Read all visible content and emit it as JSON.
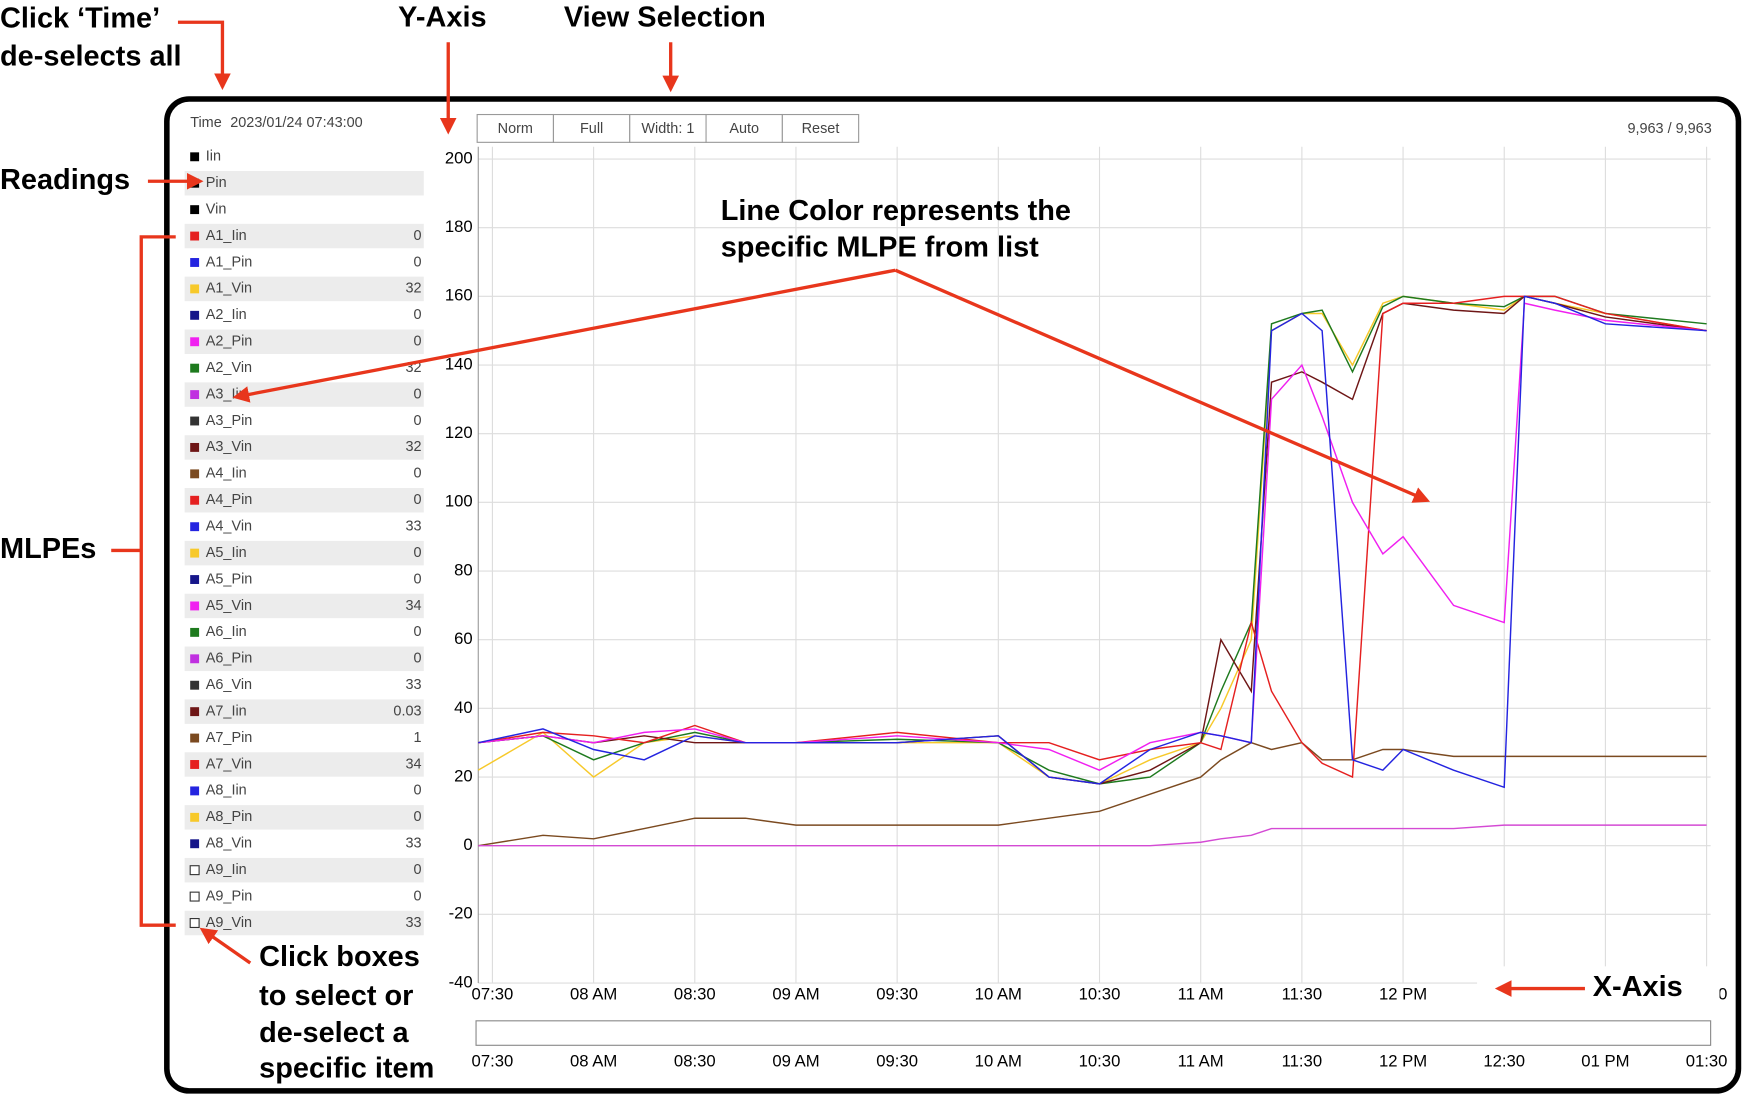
{
  "annotations": {
    "time_hint": [
      "Click ‘Time’",
      "de-selects all"
    ],
    "y_axis": "Y-Axis",
    "view_selection": "View Selection",
    "readings": "Readings",
    "mlpes": "MLPEs",
    "line_color": [
      "Line Color represents the",
      "specific MLPE from list"
    ],
    "click_boxes": [
      "Click boxes",
      "to select or",
      "de-select a",
      "specific item"
    ],
    "x_axis": "X-Axis"
  },
  "header": {
    "time_label": "Time",
    "timestamp": "2023/01/24 07:43:00",
    "counter": "9,963 / 9,963"
  },
  "toolbar": [
    "Norm",
    "Full",
    "Width: 1",
    "Auto",
    "Reset"
  ],
  "items": [
    {
      "name": "Iin",
      "color": "#000000"
    },
    {
      "name": "Pin",
      "color": "#000000"
    },
    {
      "name": "Vin",
      "color": "#000000"
    },
    {
      "name": "A1_Iin",
      "color": "#e52020",
      "value": 0
    },
    {
      "name": "A1_Pin",
      "color": "#2424e0",
      "value": 0
    },
    {
      "name": "A1_Vin",
      "color": "#f7c92a",
      "value": 32
    },
    {
      "name": "A2_Iin",
      "color": "#16168a",
      "value": 0
    },
    {
      "name": "A2_Pin",
      "color": "#f020f0",
      "value": 0
    },
    {
      "name": "A2_Vin",
      "color": "#1e7a1e",
      "value": 32
    },
    {
      "name": "A3_Iin",
      "color": "#c030e0",
      "value": 0
    },
    {
      "name": "A3_Pin",
      "color": "#333333",
      "value": 0
    },
    {
      "name": "A3_Vin",
      "color": "#6e1616",
      "value": 32
    },
    {
      "name": "A4_Iin",
      "color": "#7b4a20",
      "value": 0
    },
    {
      "name": "A4_Pin",
      "color": "#e52020",
      "value": 0
    },
    {
      "name": "A4_Vin",
      "color": "#2424e0",
      "value": 33
    },
    {
      "name": "A5_Iin",
      "color": "#f7c92a",
      "value": 0
    },
    {
      "name": "A5_Pin",
      "color": "#16168a",
      "value": 0
    },
    {
      "name": "A5_Vin",
      "color": "#f020f0",
      "value": 34
    },
    {
      "name": "A6_Iin",
      "color": "#1e7a1e",
      "value": 0
    },
    {
      "name": "A6_Pin",
      "color": "#c030e0",
      "value": 0
    },
    {
      "name": "A6_Vin",
      "color": "#333333",
      "value": 33
    },
    {
      "name": "A7_Iin",
      "color": "#6e1616",
      "value": 0.03
    },
    {
      "name": "A7_Pin",
      "color": "#7b4a20",
      "value": 1
    },
    {
      "name": "A7_Vin",
      "color": "#e52020",
      "value": 34
    },
    {
      "name": "A8_Iin",
      "color": "#2424e0",
      "value": 0
    },
    {
      "name": "A8_Pin",
      "color": "#f7c92a",
      "value": 0
    },
    {
      "name": "A8_Vin",
      "color": "#16168a",
      "value": 33
    },
    {
      "name": "A9_Iin",
      "checked": false,
      "value": 0
    },
    {
      "name": "A9_Pin",
      "checked": false,
      "value": 0
    },
    {
      "name": "A9_Vin",
      "checked": false,
      "value": 33
    }
  ],
  "chart_data": {
    "type": "line",
    "x": [
      7.43,
      7.75,
      8.0,
      8.25,
      8.5,
      8.75,
      9.0,
      9.5,
      10.0,
      10.25,
      10.5,
      10.75,
      11.0,
      11.1,
      11.25,
      11.35,
      11.5,
      11.6,
      11.75,
      11.9,
      12.0,
      12.25,
      12.5,
      12.6,
      12.75,
      13.0,
      13.5
    ],
    "series": [
      {
        "color": "#7b4a20",
        "values": [
          0,
          3,
          2,
          5,
          8,
          8,
          6,
          6,
          6,
          8,
          10,
          15,
          20,
          25,
          30,
          28,
          30,
          25,
          25,
          28,
          28,
          26,
          26,
          26,
          26,
          26,
          26
        ]
      },
      {
        "color": "#d44ad4",
        "values": [
          0,
          0,
          0,
          0,
          0,
          0,
          0,
          0,
          0,
          0,
          0,
          0,
          1,
          2,
          3,
          5,
          5,
          5,
          5,
          5,
          5,
          5,
          6,
          6,
          6,
          6,
          6
        ]
      },
      {
        "color": "#f7c92a",
        "values": [
          22,
          33,
          20,
          30,
          32,
          30,
          30,
          30,
          30,
          20,
          18,
          25,
          30,
          40,
          60,
          150,
          155,
          155,
          140,
          158,
          160,
          158,
          156,
          160,
          158,
          155,
          150
        ]
      },
      {
        "color": "#1e7a1e",
        "values": [
          30,
          32,
          25,
          30,
          33,
          30,
          30,
          31,
          30,
          22,
          18,
          20,
          30,
          45,
          65,
          152,
          155,
          156,
          138,
          157,
          160,
          158,
          157,
          160,
          160,
          155,
          152
        ]
      },
      {
        "color": "#6e1616",
        "values": [
          30,
          32,
          30,
          32,
          30,
          30,
          30,
          30,
          32,
          20,
          18,
          22,
          30,
          60,
          45,
          135,
          138,
          135,
          130,
          155,
          158,
          156,
          155,
          160,
          158,
          154,
          150
        ]
      },
      {
        "color": "#e52020",
        "values": [
          30,
          33,
          32,
          30,
          35,
          30,
          30,
          33,
          30,
          30,
          25,
          28,
          30,
          28,
          65,
          45,
          30,
          24,
          20,
          155,
          158,
          158,
          160,
          160,
          160,
          155,
          150
        ]
      },
      {
        "color": "#f020f0",
        "values": [
          30,
          32,
          30,
          33,
          34,
          30,
          30,
          32,
          30,
          28,
          22,
          30,
          33,
          32,
          30,
          130,
          140,
          125,
          100,
          85,
          90,
          70,
          65,
          158,
          156,
          153,
          150
        ]
      },
      {
        "color": "#2424e0",
        "values": [
          30,
          34,
          28,
          25,
          32,
          30,
          30,
          30,
          32,
          20,
          18,
          28,
          33,
          32,
          30,
          150,
          155,
          150,
          25,
          22,
          28,
          22,
          17,
          160,
          158,
          152,
          150
        ]
      }
    ],
    "xlim": [
      7.43,
      13.52
    ],
    "xticks": [
      {
        "value": 7.5,
        "label": "07:30"
      },
      {
        "value": 8,
        "label": "08 AM"
      },
      {
        "value": 8.5,
        "label": "08:30"
      },
      {
        "value": 9,
        "label": "09 AM"
      },
      {
        "value": 9.5,
        "label": "09:30"
      },
      {
        "value": 10,
        "label": "10 AM"
      },
      {
        "value": 10.5,
        "label": "10:30"
      },
      {
        "value": 11,
        "label": "11 AM"
      },
      {
        "value": 11.5,
        "label": "11:30"
      },
      {
        "value": 12,
        "label": "12 PM"
      },
      {
        "value": 12.5,
        "label": "12:30"
      },
      {
        "value": 13,
        "label": "01 PM"
      },
      {
        "value": 13.5,
        "label": "01:30"
      }
    ],
    "ylim": [
      -40,
      200
    ],
    "yticks": [
      -40,
      -20,
      0,
      20,
      40,
      60,
      80,
      100,
      120,
      140,
      160,
      180,
      200
    ],
    "grid": true
  }
}
